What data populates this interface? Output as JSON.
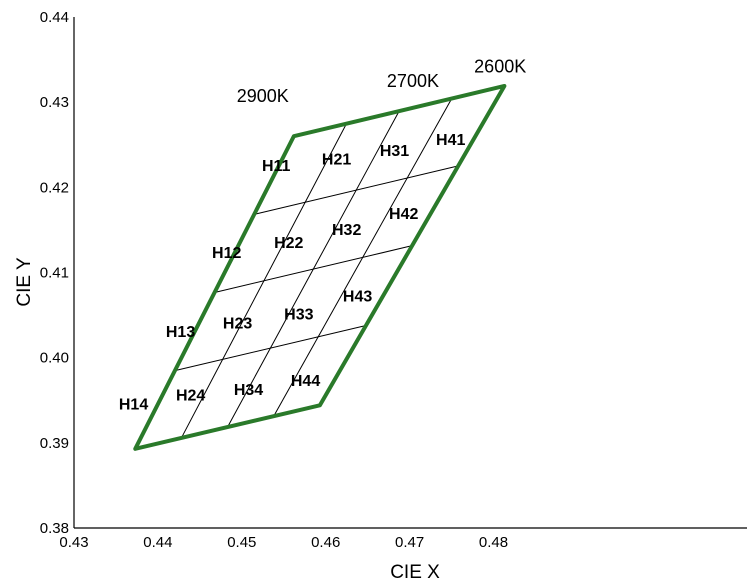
{
  "chart_data": {
    "type": "scatter",
    "xlabel": "CIE X",
    "ylabel": "CIE Y",
    "xlim": [
      0.43,
      0.485
    ],
    "ylim": [
      0.38,
      0.44
    ],
    "x_ticks": [
      "0.43",
      "0.44",
      "0.45",
      "0.46",
      "0.47",
      "0.48"
    ],
    "y_ticks": [
      "0.38",
      "0.39",
      "0.40",
      "0.41",
      "0.42",
      "0.43",
      "0.44"
    ],
    "outline_color": "#2a7a2a",
    "quadrangle": [
      {
        "x": 0.4562,
        "y": 0.426
      },
      {
        "x": 0.4813,
        "y": 0.4319
      },
      {
        "x": 0.4593,
        "y": 0.3944
      },
      {
        "x": 0.4373,
        "y": 0.3893
      }
    ],
    "temperature_labels": [
      {
        "text": "2900K",
        "x": 0.4525,
        "y": 0.43
      },
      {
        "text": "2700K",
        "x": 0.4704,
        "y": 0.4318
      },
      {
        "text": "2600K",
        "x": 0.4808,
        "y": 0.4335
      }
    ],
    "bins": [
      {
        "text": "H11",
        "x": 0.4541,
        "y": 0.4219
      },
      {
        "text": "H21",
        "x": 0.4613,
        "y": 0.4227
      },
      {
        "text": "H31",
        "x": 0.4682,
        "y": 0.4237
      },
      {
        "text": "H41",
        "x": 0.4749,
        "y": 0.425
      },
      {
        "text": "H12",
        "x": 0.4482,
        "y": 0.4117
      },
      {
        "text": "H22",
        "x": 0.4556,
        "y": 0.4129
      },
      {
        "text": "H32",
        "x": 0.4625,
        "y": 0.4144
      },
      {
        "text": "H42",
        "x": 0.4693,
        "y": 0.4163
      },
      {
        "text": "H13",
        "x": 0.4427,
        "y": 0.4024
      },
      {
        "text": "H23",
        "x": 0.4495,
        "y": 0.4034
      },
      {
        "text": "H33",
        "x": 0.4568,
        "y": 0.4045
      },
      {
        "text": "H43",
        "x": 0.4638,
        "y": 0.4066
      },
      {
        "text": "H14",
        "x": 0.4371,
        "y": 0.3939
      },
      {
        "text": "H24",
        "x": 0.4439,
        "y": 0.395
      },
      {
        "text": "H34",
        "x": 0.4508,
        "y": 0.3956
      },
      {
        "text": "H44",
        "x": 0.4576,
        "y": 0.3967
      }
    ]
  }
}
